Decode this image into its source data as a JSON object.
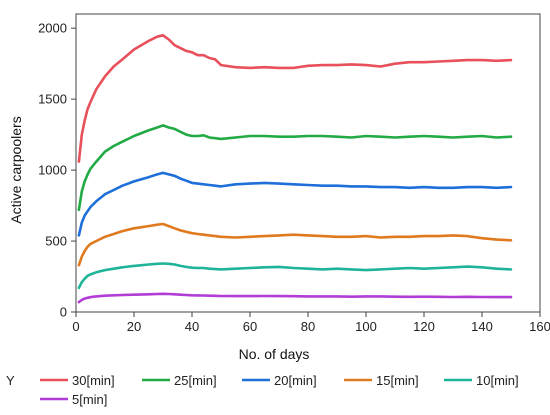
{
  "chart_data": {
    "type": "line",
    "title": "",
    "xlabel": "No. of days",
    "ylabel": "Active carpoolers",
    "xlim": [
      0,
      160
    ],
    "ylim": [
      0,
      2100
    ],
    "xticks": [
      0,
      20,
      40,
      60,
      80,
      100,
      120,
      140,
      160
    ],
    "yticks": [
      0,
      500,
      1000,
      1500,
      2000
    ],
    "grid": false,
    "legend": {
      "title": "Y",
      "placement": "bottom"
    },
    "x": [
      1,
      2,
      3,
      4,
      5,
      7,
      10,
      13,
      16,
      20,
      25,
      28,
      30,
      32,
      34,
      36,
      38,
      40,
      42,
      44,
      46,
      48,
      50,
      55,
      60,
      65,
      70,
      75,
      80,
      85,
      90,
      95,
      100,
      105,
      110,
      115,
      120,
      125,
      130,
      135,
      140,
      145,
      150
    ],
    "series": [
      {
        "name": "30[min]",
        "color": "#E8505B",
        "values": [
          1060,
          1250,
          1350,
          1430,
          1480,
          1570,
          1660,
          1730,
          1780,
          1850,
          1910,
          1940,
          1950,
          1920,
          1880,
          1860,
          1840,
          1830,
          1810,
          1810,
          1790,
          1780,
          1740,
          1725,
          1720,
          1725,
          1720,
          1720,
          1735,
          1740,
          1740,
          1745,
          1740,
          1730,
          1750,
          1760,
          1760,
          1765,
          1770,
          1775,
          1775,
          1770,
          1775
        ]
      },
      {
        "name": "25[min]",
        "color": "#22AA44",
        "values": [
          720,
          850,
          920,
          970,
          1010,
          1060,
          1130,
          1170,
          1200,
          1240,
          1280,
          1300,
          1315,
          1300,
          1290,
          1270,
          1250,
          1240,
          1240,
          1245,
          1230,
          1225,
          1220,
          1230,
          1240,
          1240,
          1235,
          1235,
          1240,
          1240,
          1235,
          1230,
          1240,
          1235,
          1230,
          1235,
          1240,
          1235,
          1230,
          1235,
          1240,
          1230,
          1235
        ]
      },
      {
        "name": "20[min]",
        "color": "#1E6FD9",
        "values": [
          540,
          630,
          680,
          710,
          740,
          780,
          830,
          860,
          890,
          920,
          950,
          970,
          980,
          970,
          960,
          940,
          925,
          910,
          905,
          900,
          895,
          890,
          885,
          900,
          905,
          910,
          905,
          900,
          895,
          890,
          890,
          885,
          885,
          880,
          880,
          875,
          880,
          875,
          875,
          880,
          880,
          875,
          880
        ]
      },
      {
        "name": "15[min]",
        "color": "#E07A1F",
        "values": [
          330,
          390,
          430,
          460,
          480,
          500,
          530,
          550,
          570,
          590,
          605,
          615,
          620,
          605,
          590,
          575,
          565,
          555,
          550,
          545,
          540,
          535,
          530,
          525,
          530,
          535,
          540,
          545,
          540,
          535,
          530,
          530,
          535,
          525,
          530,
          530,
          535,
          535,
          540,
          535,
          520,
          510,
          505
        ]
      },
      {
        "name": "10[min]",
        "color": "#1FB39A",
        "values": [
          170,
          210,
          235,
          255,
          265,
          280,
          295,
          305,
          315,
          325,
          335,
          340,
          342,
          340,
          335,
          325,
          318,
          312,
          310,
          310,
          305,
          302,
          300,
          305,
          310,
          315,
          318,
          310,
          305,
          300,
          305,
          300,
          295,
          300,
          305,
          310,
          305,
          310,
          315,
          320,
          315,
          305,
          300
        ]
      },
      {
        "name": "5[min]",
        "color": "#B23CD6",
        "values": [
          70,
          85,
          95,
          100,
          105,
          110,
          115,
          118,
          120,
          122,
          125,
          127,
          128,
          127,
          125,
          122,
          120,
          118,
          117,
          116,
          115,
          114,
          113,
          112,
          112,
          113,
          112,
          111,
          110,
          110,
          110,
          108,
          110,
          110,
          108,
          107,
          108,
          107,
          106,
          107,
          106,
          105,
          105
        ]
      }
    ]
  }
}
